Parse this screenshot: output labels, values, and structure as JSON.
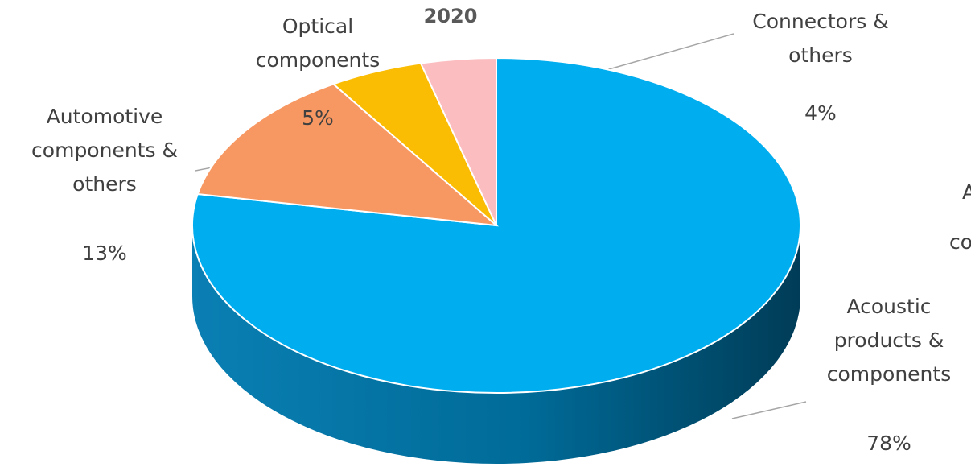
{
  "chart_data": {
    "type": "pie",
    "title": "2020",
    "categories": [
      "Acoustic\nproducts &\ncomponents",
      "Automotive\ncomponents &\nothers",
      "Optical\ncomponents",
      "Connectors &\nothers"
    ],
    "values": [
      78,
      13,
      5,
      4
    ],
    "value_labels": [
      "78%",
      "13%",
      "5%",
      "4%"
    ],
    "colors": [
      "#00AEEF",
      "#F79862",
      "#FBBC04",
      "#FBBDC0"
    ],
    "legend": "none",
    "style": "3d"
  },
  "cropped_label": {
    "line1": "A",
    "line2": "co"
  }
}
